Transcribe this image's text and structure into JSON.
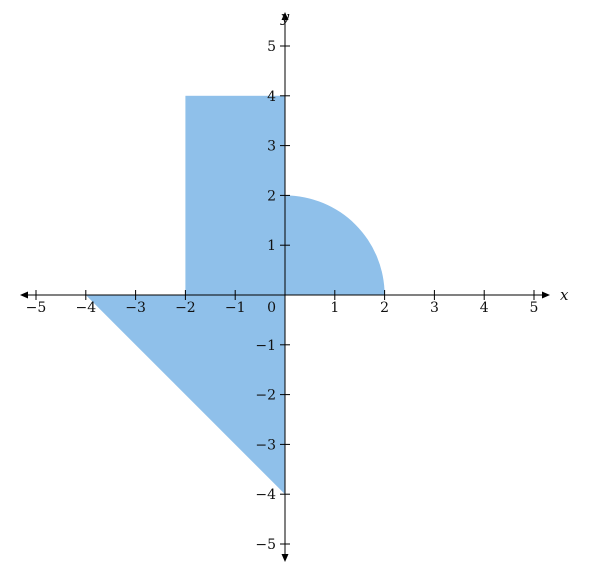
{
  "chart_data": {
    "type": "region",
    "xlabel": "x",
    "ylabel": "y",
    "xlim": [
      -5,
      5
    ],
    "ylim": [
      -5,
      5
    ],
    "x_ticks": [
      -5,
      -4,
      -3,
      -2,
      -1,
      1,
      2,
      3,
      4,
      5
    ],
    "y_ticks": [
      -5,
      -4,
      -3,
      -2,
      -1,
      1,
      2,
      3,
      4,
      5
    ],
    "x_tick_labels": [
      "−5",
      "−4",
      "−3",
      "−2",
      "−1",
      "1",
      "2",
      "3",
      "4",
      "5"
    ],
    "y_tick_labels": [
      "−5",
      "−4",
      "−3",
      "−2",
      "−1",
      "1",
      "2",
      "3",
      "4",
      "5"
    ],
    "origin_label": "0",
    "fill_color": "#8fc0ea",
    "regions": [
      {
        "shape": "rectangle",
        "x_range": [
          -2,
          0
        ],
        "y_range": [
          0,
          4
        ]
      },
      {
        "shape": "quarter-circle",
        "center": [
          0,
          0
        ],
        "radius": 2,
        "quadrant": "first"
      },
      {
        "shape": "triangle",
        "vertices": [
          [
            -4,
            0
          ],
          [
            0,
            0
          ],
          [
            0,
            -4
          ]
        ]
      }
    ]
  }
}
